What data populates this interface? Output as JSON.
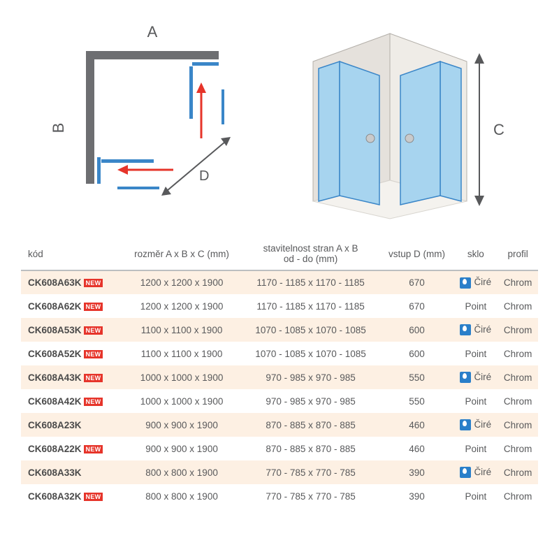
{
  "diagram": {
    "labelA": "A",
    "labelB": "B",
    "labelC": "C",
    "labelD": "D",
    "line_color": "#3a86c8",
    "frame_color": "#6d6e71",
    "arrow_color": "#e6342a",
    "wall_fill": "#e5e1dc",
    "wall_stroke": "#b3afa9",
    "glass_fill": "#a7d4ef",
    "glass_stroke": "#3a86c8",
    "handle_fill": "#c9cacb"
  },
  "table": {
    "headers": {
      "kod": "kód",
      "rozmer": "rozměr A x B x C (mm)",
      "stavitelnost": "stavitelnost stran A x B\nod - do (mm)",
      "vstup": "vstup D (mm)",
      "sklo": "sklo",
      "profil": "profil"
    },
    "new_label": "NEW",
    "rows": [
      {
        "kod": "CK608A63K",
        "new": true,
        "rozmer": "1200 x 1200 x 1900",
        "stav": "1170 - 1185 x 1170 - 1185",
        "vstup": "670",
        "sklo": "Čiré",
        "drop": true,
        "profil": "Chrom"
      },
      {
        "kod": "CK608A62K",
        "new": true,
        "rozmer": "1200 x 1200 x 1900",
        "stav": "1170 - 1185 x 1170 - 1185",
        "vstup": "670",
        "sklo": "Point",
        "drop": false,
        "profil": "Chrom"
      },
      {
        "kod": "CK608A53K",
        "new": true,
        "rozmer": "1100 x 1100 x 1900",
        "stav": "1070 - 1085 x 1070 - 1085",
        "vstup": "600",
        "sklo": "Čiré",
        "drop": true,
        "profil": "Chrom"
      },
      {
        "kod": "CK608A52K",
        "new": true,
        "rozmer": "1100 x 1100 x 1900",
        "stav": "1070 - 1085 x 1070 - 1085",
        "vstup": "600",
        "sklo": "Point",
        "drop": false,
        "profil": "Chrom"
      },
      {
        "kod": "CK608A43K",
        "new": true,
        "rozmer": "1000 x 1000 x 1900",
        "stav": "970 - 985 x 970 - 985",
        "vstup": "550",
        "sklo": "Čiré",
        "drop": true,
        "profil": "Chrom"
      },
      {
        "kod": "CK608A42K",
        "new": true,
        "rozmer": "1000 x 1000 x 1900",
        "stav": "970 - 985 x 970 - 985",
        "vstup": "550",
        "sklo": "Point",
        "drop": false,
        "profil": "Chrom"
      },
      {
        "kod": "CK608A23K",
        "new": false,
        "rozmer": "900 x 900 x 1900",
        "stav": "870 - 885 x 870 - 885",
        "vstup": "460",
        "sklo": "Čiré",
        "drop": true,
        "profil": "Chrom"
      },
      {
        "kod": "CK608A22K",
        "new": true,
        "rozmer": "900 x 900 x 1900",
        "stav": "870 - 885 x 870 - 885",
        "vstup": "460",
        "sklo": "Point",
        "drop": false,
        "profil": "Chrom"
      },
      {
        "kod": "CK608A33K",
        "new": false,
        "rozmer": "800 x 800 x 1900",
        "stav": "770 - 785 x 770 - 785",
        "vstup": "390",
        "sklo": "Čiré",
        "drop": true,
        "profil": "Chrom"
      },
      {
        "kod": "CK608A32K",
        "new": true,
        "rozmer": "800 x 800 x 1900",
        "stav": "770 - 785 x 770 - 785",
        "vstup": "390",
        "sklo": "Point",
        "drop": false,
        "profil": "Chrom"
      }
    ],
    "alt_row_bg": "#fdf0e3",
    "header_border": "#bcbec0",
    "text_color": "#58595b",
    "new_bg": "#e6342a",
    "drop_bg": "#2a7fc9"
  }
}
